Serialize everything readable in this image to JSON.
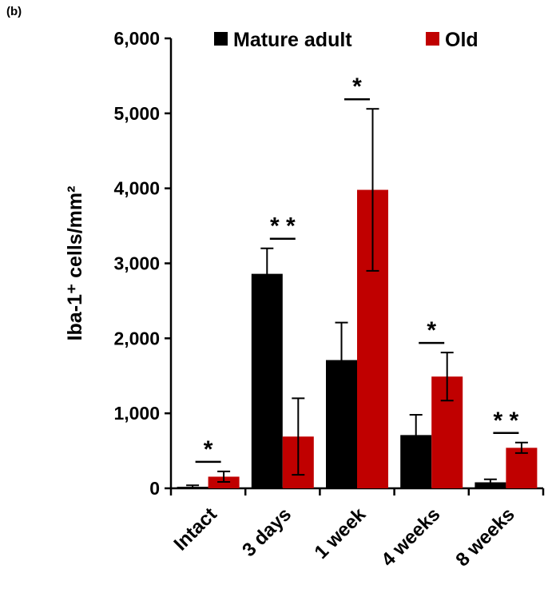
{
  "panel_label": "(b)",
  "chart_data": {
    "type": "bar",
    "title": "",
    "xlabel": "",
    "ylabel": "Iba-1⁺ cells/mm²",
    "ylim": [
      0,
      6000
    ],
    "yticks": [
      0,
      1000,
      2000,
      3000,
      4000,
      5000,
      6000
    ],
    "ytick_labels": [
      "0",
      "1,000",
      "2,000",
      "3,000",
      "4,000",
      "5,000",
      "6,000"
    ],
    "categories": [
      "Intact",
      "3 days",
      "1 week",
      "4 weeks",
      "8 weeks"
    ],
    "series": [
      {
        "name": "Mature adult",
        "color": "#000000",
        "values": [
          20,
          2860,
          1710,
          710,
          80
        ],
        "errors": [
          20,
          340,
          500,
          270,
          40
        ]
      },
      {
        "name": "Old",
        "color": "#c00000",
        "values": [
          155,
          690,
          3980,
          1490,
          540
        ],
        "errors": [
          70,
          510,
          1080,
          320,
          70
        ]
      }
    ],
    "significance": [
      "*",
      "* *",
      "*",
      "*",
      "* *"
    ],
    "legend_position": "top",
    "grid": false
  }
}
